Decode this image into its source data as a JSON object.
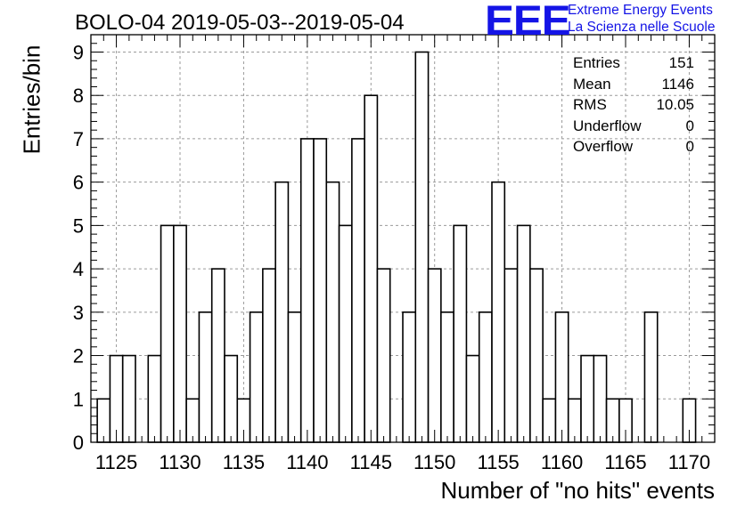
{
  "title": "BOLO-04 2019-05-03--2019-05-04",
  "logo": {
    "mark": "EEE",
    "line1": "Extreme Energy Events",
    "line2": "La Scienza nelle Scuole",
    "color": "#1414e6"
  },
  "stats": [
    {
      "label": "Entries",
      "value": "151"
    },
    {
      "label": "Mean",
      "value": "1146"
    },
    {
      "label": "RMS",
      "value": "10.05"
    },
    {
      "label": "Underflow",
      "value": "0"
    },
    {
      "label": "Overflow",
      "value": "0"
    }
  ],
  "chart_data": {
    "type": "bar",
    "title": "BOLO-04 2019-05-03--2019-05-04",
    "xlabel": "Number of \"no hits\" events",
    "ylabel": "Entries/bin",
    "xlim": [
      1123,
      1172
    ],
    "ylim": [
      0,
      9.4
    ],
    "bin_width": 1,
    "grid": true,
    "x_ticks": [
      1125,
      1130,
      1135,
      1140,
      1145,
      1150,
      1155,
      1160,
      1165,
      1170
    ],
    "y_ticks": [
      0,
      1,
      2,
      3,
      4,
      5,
      6,
      7,
      8,
      9
    ],
    "bins": [
      1124,
      1125,
      1126,
      1127,
      1128,
      1129,
      1130,
      1131,
      1132,
      1133,
      1134,
      1135,
      1136,
      1137,
      1138,
      1139,
      1140,
      1141,
      1142,
      1143,
      1144,
      1145,
      1146,
      1147,
      1148,
      1149,
      1150,
      1151,
      1152,
      1153,
      1154,
      1155,
      1156,
      1157,
      1158,
      1159,
      1160,
      1161,
      1162,
      1163,
      1164,
      1165,
      1166,
      1167,
      1168,
      1169,
      1170,
      1171
    ],
    "values": [
      1,
      2,
      2,
      0,
      2,
      5,
      5,
      1,
      3,
      4,
      2,
      1,
      3,
      4,
      6,
      3,
      7,
      7,
      6,
      5,
      7,
      8,
      4,
      0,
      3,
      9,
      4,
      3,
      5,
      2,
      3,
      6,
      4,
      5,
      4,
      1,
      3,
      1,
      2,
      2,
      1,
      1,
      0,
      3,
      0,
      0,
      1,
      0
    ]
  }
}
